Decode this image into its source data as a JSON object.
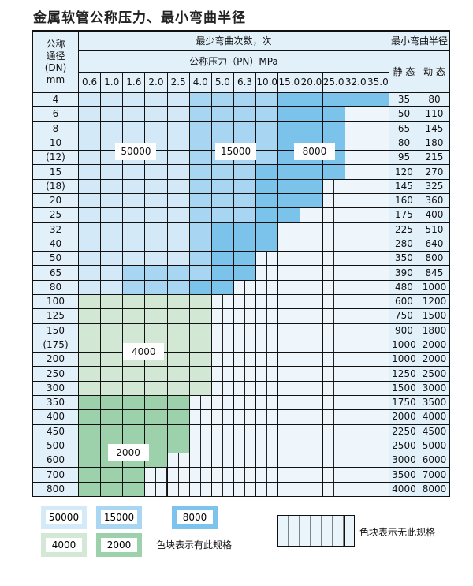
{
  "title": "金属软管公称压力、最小弯曲半径",
  "header": {
    "dn": "公称\n通径\n(DN)\nmm",
    "cycles": "最少弯曲次数，次",
    "pressure": "公称压力（PN）MPa",
    "radius": "最小弯曲半径",
    "static": "静 态",
    "dynamic": "动 态"
  },
  "pressures": [
    "0.6",
    "1.0",
    "1.6",
    "2.0",
    "2.5",
    "4.0",
    "5.0",
    "6.3",
    "10.0",
    "15.0",
    "20.0",
    "25.0",
    "32.0",
    "35.0"
  ],
  "colors": {
    "L": "#d3e9f8",
    "M": "#a8d5f2",
    "D": "#7cc3ec",
    "G": "#d2e8d5",
    "H": "#9dd1ab"
  },
  "rows": [
    {
      "dn": "4",
      "s": "35",
      "d": "80",
      "cells": "LLLLLMMMMDDDDD"
    },
    {
      "dn": "6",
      "s": "50",
      "d": "110",
      "cells": "LLLLLMMMMDDDXX"
    },
    {
      "dn": "8",
      "s": "65",
      "d": "145",
      "cells": "LLLLLMMMMDDDXX"
    },
    {
      "dn": "10",
      "s": "80",
      "d": "180",
      "cells": "LLLLLMMMMDDDXX"
    },
    {
      "dn": "(12)",
      "s": "95",
      "d": "215",
      "cells": "LLLLLMMMMDDDXX"
    },
    {
      "dn": "15",
      "s": "120",
      "d": "270",
      "cells": "LLLLLMMMDDDDXX"
    },
    {
      "dn": "(18)",
      "s": "145",
      "d": "325",
      "cells": "LLLLLMMMDDDXXX"
    },
    {
      "dn": "20",
      "s": "160",
      "d": "360",
      "cells": "LLLLLMMMDDDXXX"
    },
    {
      "dn": "25",
      "s": "175",
      "d": "400",
      "cells": "LLLLLMMMDDXXXX"
    },
    {
      "dn": "32",
      "s": "225",
      "d": "510",
      "cells": "LLLLLMDDDXXXXX"
    },
    {
      "dn": "40",
      "s": "280",
      "d": "640",
      "cells": "LLLLLMDDDXXXXX"
    },
    {
      "dn": "50",
      "s": "350",
      "d": "800",
      "cells": "LLLLLMDDXXXXXX"
    },
    {
      "dn": "65",
      "s": "390",
      "d": "845",
      "cells": "LLMMMMDDXXXXXX"
    },
    {
      "dn": "80",
      "s": "480",
      "d": "1000",
      "cells": "LLMMMDDXXXXXXX"
    },
    {
      "dn": "100",
      "s": "600",
      "d": "1200",
      "cells": "GGGGGGXXXXXXXX"
    },
    {
      "dn": "125",
      "s": "750",
      "d": "1500",
      "cells": "GGGGGGXXXXXXXX"
    },
    {
      "dn": "150",
      "s": "900",
      "d": "1800",
      "cells": "GGGGGGXXXXXXXX"
    },
    {
      "dn": "(175)",
      "s": "1000",
      "d": "2000",
      "cells": "GGGGGGXXXXXXXX"
    },
    {
      "dn": "200",
      "s": "1000",
      "d": "2000",
      "cells": "GGGGGGXXXXXXXX"
    },
    {
      "dn": "250",
      "s": "1250",
      "d": "2500",
      "cells": "GGGGGGXXXXXXXX"
    },
    {
      "dn": "300",
      "s": "1500",
      "d": "3000",
      "cells": "GGGGGGXXXXXXXX"
    },
    {
      "dn": "350",
      "s": "1750",
      "d": "3500",
      "cells": "HHHHHXXXXXXXXX"
    },
    {
      "dn": "400",
      "s": "2000",
      "d": "4000",
      "cells": "HHHHHXXXXXXXXX"
    },
    {
      "dn": "450",
      "s": "2250",
      "d": "4500",
      "cells": "HHHHHXXXXXXXXX"
    },
    {
      "dn": "500",
      "s": "2500",
      "d": "5000",
      "cells": "HHHHHXXXXXXXXX"
    },
    {
      "dn": "600",
      "s": "3000",
      "d": "6000",
      "cells": "HHHHXXXXXXXXXX"
    },
    {
      "dn": "700",
      "s": "3500",
      "d": "7000",
      "cells": "HHHXXXXXXXXXXX"
    },
    {
      "dn": "800",
      "s": "4000",
      "d": "8000",
      "cells": "HHHXXXXXXXXXXX"
    }
  ],
  "region_labels": {
    "L": "50000",
    "M": "15000",
    "D": "8000",
    "G": "4000",
    "H": "2000"
  },
  "legend": {
    "has_spec": "色块表示有此规格",
    "no_spec": "色块表示无此规格"
  }
}
